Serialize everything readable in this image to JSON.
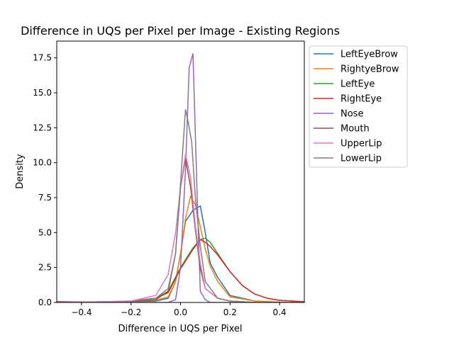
{
  "chart_data": {
    "type": "line",
    "title": "Difference in UQS per Pixel per Image - Existing Regions",
    "xlabel": "Difference in UQS per Pixel",
    "ylabel": "Density",
    "xlim": [
      -0.5,
      0.5
    ],
    "ylim": [
      0,
      18.7
    ],
    "x_ticks": [
      -0.4,
      -0.2,
      0.0,
      0.2,
      0.4
    ],
    "x_tick_labels": [
      "−0.4",
      "−0.2",
      "0.0",
      "0.2",
      "0.4"
    ],
    "y_ticks": [
      0,
      2.5,
      5,
      7.5,
      10,
      12.5,
      15,
      17.5
    ],
    "y_tick_labels": [
      "0.0",
      "2.5",
      "5.0",
      "7.5",
      "10.0",
      "12.5",
      "15.0",
      "17.5"
    ],
    "grid": false,
    "legend_position": "outside-right-top",
    "series": [
      {
        "name": "LeftEyeBrow",
        "color": "#1f77b4",
        "x": [
          -0.5,
          -0.3,
          -0.2,
          -0.1,
          -0.05,
          -0.02,
          0.0,
          0.02,
          0.05,
          0.08,
          0.1,
          0.12,
          0.15,
          0.2,
          0.3,
          0.4,
          0.5
        ],
        "y": [
          0,
          0,
          0.05,
          0.1,
          0.3,
          1.5,
          3.5,
          5.8,
          6.6,
          6.9,
          5.0,
          2.8,
          1.8,
          0.5,
          0.1,
          0.02,
          0
        ]
      },
      {
        "name": "RightyeBrow",
        "color": "#ff7f0e",
        "x": [
          -0.5,
          -0.3,
          -0.2,
          -0.1,
          -0.05,
          -0.02,
          0.0,
          0.02,
          0.04,
          0.06,
          0.08,
          0.1,
          0.12,
          0.15,
          0.2,
          0.3,
          0.4,
          0.5
        ],
        "y": [
          0,
          0,
          0.05,
          0.15,
          0.4,
          1.5,
          3.5,
          6.0,
          7.6,
          7.0,
          5.4,
          3.8,
          2.6,
          1.5,
          0.4,
          0.1,
          0.02,
          0
        ]
      },
      {
        "name": "LeftEye",
        "color": "#2ca02c",
        "x": [
          -0.5,
          -0.4,
          -0.3,
          -0.2,
          -0.1,
          -0.05,
          0.0,
          0.05,
          0.08,
          0.1,
          0.12,
          0.15,
          0.2,
          0.25,
          0.3,
          0.35,
          0.4,
          0.5
        ],
        "y": [
          0.05,
          0.03,
          0.05,
          0.1,
          0.3,
          0.8,
          2.5,
          3.9,
          4.5,
          4.6,
          4.3,
          3.5,
          2.2,
          1.2,
          0.6,
          0.3,
          0.15,
          0.05
        ]
      },
      {
        "name": "RightEye",
        "color": "#d62728",
        "x": [
          -0.5,
          -0.4,
          -0.3,
          -0.2,
          -0.1,
          -0.05,
          0.0,
          0.05,
          0.08,
          0.1,
          0.12,
          0.15,
          0.2,
          0.25,
          0.3,
          0.35,
          0.4,
          0.5
        ],
        "y": [
          0.05,
          0.03,
          0.05,
          0.1,
          0.3,
          0.7,
          2.4,
          3.8,
          4.5,
          4.3,
          4.0,
          3.4,
          2.2,
          1.2,
          0.6,
          0.3,
          0.15,
          0.05
        ]
      },
      {
        "name": "Nose",
        "color": "#9467bd",
        "x": [
          -0.5,
          -0.2,
          -0.05,
          -0.02,
          0.0,
          0.02,
          0.035,
          0.05,
          0.06,
          0.07,
          0.08,
          0.1,
          0.12,
          0.2,
          0.5
        ],
        "y": [
          0,
          0,
          0,
          0.2,
          2.5,
          9.5,
          16.8,
          17.8,
          12.0,
          6.0,
          0.8,
          0.2,
          0,
          0,
          0
        ]
      },
      {
        "name": "Mouth",
        "color": "#8c564b",
        "x": [
          -0.5,
          -0.3,
          -0.2,
          -0.1,
          -0.05,
          -0.02,
          0.0,
          0.02,
          0.04,
          0.06,
          0.08,
          0.1,
          0.15,
          0.2,
          0.3,
          0.5
        ],
        "y": [
          0,
          0,
          0.05,
          0.2,
          0.8,
          3.5,
          8.2,
          10.3,
          8.3,
          5.2,
          2.4,
          1.0,
          0.3,
          0.1,
          0,
          0
        ]
      },
      {
        "name": "UpperLip",
        "color": "#e377c2",
        "x": [
          -0.5,
          -0.3,
          -0.2,
          -0.1,
          -0.05,
          -0.02,
          0.0,
          0.02,
          0.04,
          0.06,
          0.08,
          0.1,
          0.15,
          0.2,
          0.3,
          0.5
        ],
        "y": [
          0,
          0.05,
          0.1,
          0.5,
          2.0,
          5.0,
          8.2,
          10.6,
          9.0,
          5.5,
          2.8,
          1.0,
          0.3,
          0.1,
          0,
          0
        ]
      },
      {
        "name": "LowerLip",
        "color": "#7f7f7f",
        "x": [
          -0.5,
          -0.3,
          -0.2,
          -0.1,
          -0.05,
          -0.02,
          0.0,
          0.02,
          0.03,
          0.045,
          0.06,
          0.08,
          0.1,
          0.15,
          0.2,
          0.3,
          0.5
        ],
        "y": [
          0,
          0,
          0.05,
          0.3,
          1.0,
          3.5,
          8.5,
          13.8,
          13.0,
          11.5,
          7.5,
          4.0,
          1.5,
          0.3,
          0.1,
          0,
          0
        ]
      }
    ]
  }
}
